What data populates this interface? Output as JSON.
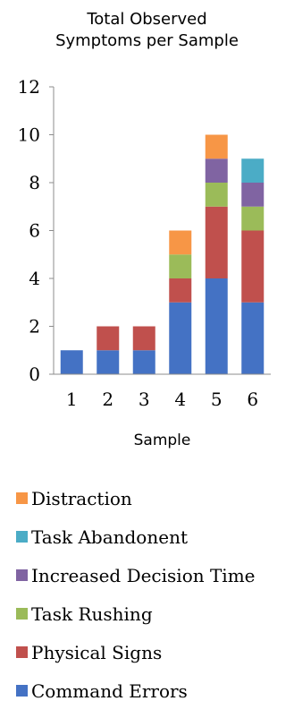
{
  "chart_data": {
    "type": "bar",
    "stacked": true,
    "title_lines": [
      "Total Observed",
      "Symptoms per Sample"
    ],
    "xlabel": "Sample",
    "ylabel": "",
    "categories": [
      "1",
      "2",
      "3",
      "4",
      "5",
      "6"
    ],
    "ylim": [
      0,
      12
    ],
    "yticks": [
      "0",
      "2",
      "4",
      "6",
      "8",
      "10",
      "12"
    ],
    "grid": false,
    "legend_position": "bottom",
    "series": [
      {
        "name": "Command Errors",
        "color": "#4472C4",
        "values": [
          1,
          1,
          1,
          3,
          4,
          3
        ]
      },
      {
        "name": "Physical Signs",
        "color": "#C0504D",
        "values": [
          0,
          1,
          1,
          1,
          3,
          3
        ]
      },
      {
        "name": "Task Rushing",
        "color": "#9BBB59",
        "values": [
          0,
          0,
          0,
          1,
          1,
          1
        ]
      },
      {
        "name": "Increased Decision Time",
        "color": "#8064A2",
        "values": [
          0,
          0,
          0,
          0,
          1,
          1
        ]
      },
      {
        "name": "Task Abandonent",
        "color": "#4BACC6",
        "values": [
          0,
          0,
          0,
          0,
          0,
          1
        ]
      },
      {
        "name": "Distraction",
        "color": "#F79646",
        "values": [
          0,
          0,
          0,
          1,
          1,
          0
        ]
      }
    ]
  }
}
